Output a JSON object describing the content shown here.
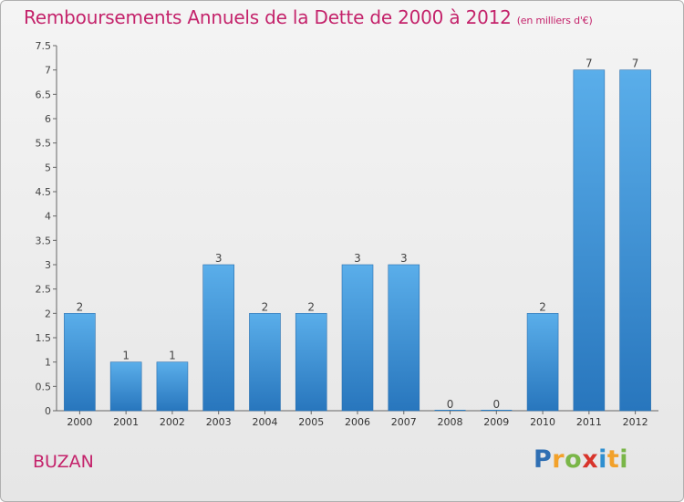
{
  "header": {
    "title": "Remboursements Annuels de la Dette de 2000 à 2012",
    "unit": "(en milliers d'€)"
  },
  "footer": {
    "commune": "BUZAN",
    "logo_letters": [
      "P",
      "r",
      "o",
      "x",
      "i",
      "t",
      "i"
    ],
    "logo_colors": [
      "#2f6fb3",
      "#f2a12a",
      "#7ab648",
      "#d8342b",
      "#2f8fd0",
      "#f2a12a",
      "#7ab648"
    ]
  },
  "chart_data": {
    "type": "bar",
    "title": "Remboursements Annuels de la Dette de 2000 à 2012",
    "categories": [
      "2000",
      "2001",
      "2002",
      "2003",
      "2004",
      "2005",
      "2006",
      "2007",
      "2008",
      "2009",
      "2010",
      "2011",
      "2012"
    ],
    "values": [
      2,
      1,
      1,
      3,
      2,
      2,
      3,
      3,
      0,
      0,
      2,
      7,
      7
    ],
    "data_labels": [
      "2",
      "1",
      "1",
      "3",
      "2",
      "2",
      "3",
      "3",
      "0",
      "0",
      "2",
      "7",
      "7"
    ],
    "ylim": [
      0,
      7.5
    ],
    "yticks": [
      0,
      0.5,
      1,
      1.5,
      2,
      2.5,
      3,
      3.5,
      4,
      4.5,
      5,
      5.5,
      6,
      6.5,
      7,
      7.5
    ],
    "ytick_labels": [
      "0",
      "0.5",
      "1",
      "1.5",
      "2",
      "2.5",
      "3",
      "3.5",
      "4",
      "4.5",
      "5",
      "5.5",
      "6",
      "6.5",
      "7",
      "7.5"
    ],
    "grid": false,
    "bar_color": "#4a9fe0",
    "bar_color_dark": "#2b7ec4"
  }
}
